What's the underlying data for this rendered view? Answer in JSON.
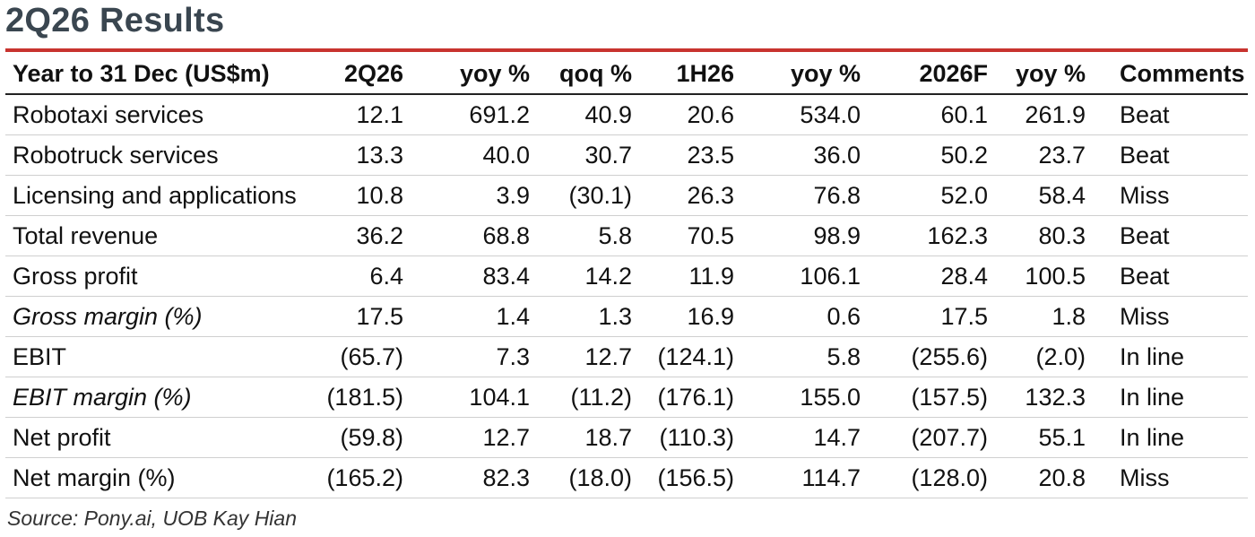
{
  "title": "2Q26 Results",
  "headers": [
    "Year to 31 Dec (US$m)",
    "2Q26",
    "yoy %",
    "qoq %",
    "1H26",
    "yoy %",
    "2026F",
    "yoy %",
    "Comments"
  ],
  "rows": [
    {
      "label": "Robotaxi services",
      "italic": false,
      "values": [
        "12.1",
        "691.2",
        "40.9",
        "20.6",
        "534.0",
        "60.1",
        "261.9"
      ],
      "comment": "Beat"
    },
    {
      "label": "Robotruck services",
      "italic": false,
      "values": [
        "13.3",
        "40.0",
        "30.7",
        "23.5",
        "36.0",
        "50.2",
        "23.7"
      ],
      "comment": "Beat"
    },
    {
      "label": "Licensing and applications",
      "italic": false,
      "values": [
        "10.8",
        "3.9",
        "(30.1)",
        "26.3",
        "76.8",
        "52.0",
        "58.4"
      ],
      "comment": "Miss"
    },
    {
      "label": "Total revenue",
      "italic": false,
      "values": [
        "36.2",
        "68.8",
        "5.8",
        "70.5",
        "98.9",
        "162.3",
        "80.3"
      ],
      "comment": "Beat"
    },
    {
      "label": "Gross profit",
      "italic": false,
      "values": [
        "6.4",
        "83.4",
        "14.2",
        "11.9",
        "106.1",
        "28.4",
        "100.5"
      ],
      "comment": "Beat"
    },
    {
      "label": "Gross margin (%)",
      "italic": true,
      "values": [
        "17.5",
        "1.4",
        "1.3",
        "16.9",
        "0.6",
        "17.5",
        "1.8"
      ],
      "comment": "Miss"
    },
    {
      "label": "EBIT",
      "italic": false,
      "values": [
        "(65.7)",
        "7.3",
        "12.7",
        "(124.1)",
        "5.8",
        "(255.6)",
        "(2.0)"
      ],
      "comment": "In line"
    },
    {
      "label": "EBIT margin (%)",
      "italic": true,
      "values": [
        "(181.5)",
        "104.1",
        "(11.2)",
        "(176.1)",
        "155.0",
        "(157.5)",
        "132.3"
      ],
      "comment": "In line"
    },
    {
      "label": "Net profit",
      "italic": false,
      "values": [
        "(59.8)",
        "12.7",
        "18.7",
        "(110.3)",
        "14.7",
        "(207.7)",
        "55.1"
      ],
      "comment": "In line"
    },
    {
      "label": "Net margin (%)",
      "italic": false,
      "values": [
        "(165.2)",
        "82.3",
        "(18.0)",
        "(156.5)",
        "114.7",
        "(128.0)",
        "20.8"
      ],
      "comment": "Miss"
    }
  ],
  "source": "Source: Pony.ai, UOB Kay Hian",
  "colors": {
    "title": "#3a4650",
    "rule": "#c8332f"
  }
}
